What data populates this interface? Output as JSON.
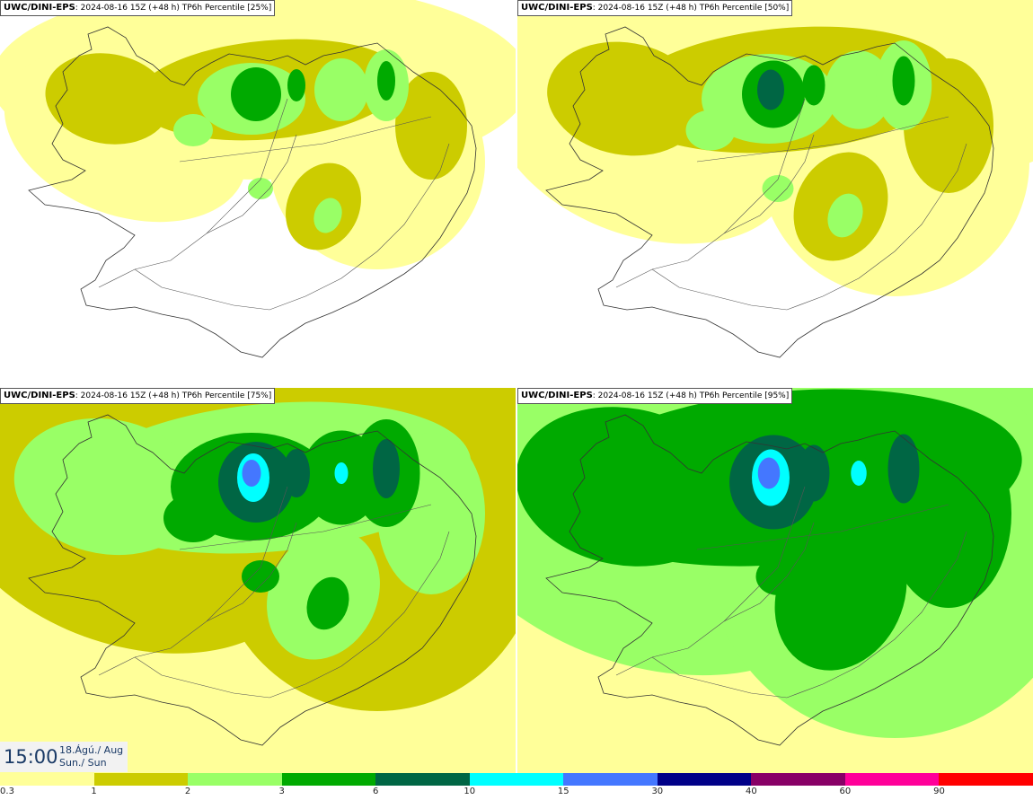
{
  "panels": [
    {
      "source": "UWC/DINI-EPS",
      "info": ": 2024-08-16 15Z (+48 h) TP6h Percentile [25%]",
      "level": 0
    },
    {
      "source": "UWC/DINI-EPS",
      "info": ": 2024-08-16 15Z (+48 h) TP6h Percentile [50%]",
      "level": 1
    },
    {
      "source": "UWC/DINI-EPS",
      "info": ": 2024-08-16 15Z (+48 h) TP6h Percentile [75%]",
      "level": 2
    },
    {
      "source": "UWC/DINI-EPS",
      "info": ": 2024-08-16 15Z (+48 h) TP6h Percentile [95%]",
      "level": 3
    }
  ],
  "time": {
    "clock": "15:00",
    "date_line": "18.Ágú./ Aug",
    "day_line": "Sun./ Sun"
  },
  "legend": {
    "colors": [
      "#ffff99",
      "#cccc00",
      "#99ff66",
      "#00aa00",
      "#006644",
      "#00ffff",
      "#4477ff",
      "#000088",
      "#880066",
      "#ff0099",
      "#ff0000"
    ],
    "labels": [
      "0.3",
      "1",
      "2",
      "3",
      "6",
      "10",
      "15",
      "30",
      "40",
      "60",
      "90"
    ]
  },
  "colors": {
    "background": "#ffffff",
    "coast": "#333333",
    "roads": "#555555"
  }
}
